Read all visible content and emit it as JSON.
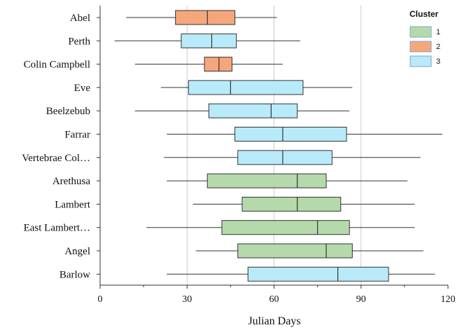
{
  "chart_data": {
    "type": "boxplot",
    "orientation": "horizontal",
    "xlabel": "Julian Days",
    "ylabel": "",
    "title": "",
    "xlim": [
      0,
      120
    ],
    "xticks": [
      0,
      30,
      60,
      90,
      120
    ],
    "grid": {
      "vertical": [
        30,
        60,
        90
      ]
    },
    "legend": {
      "title": "Cluster",
      "placement": "top-right",
      "entries": [
        {
          "label": "1",
          "color": "#B5D9AB"
        },
        {
          "label": "2",
          "color": "#F5A77C"
        },
        {
          "label": "3",
          "color": "#B8EAFA"
        }
      ]
    },
    "categories": [
      {
        "label": "Abel",
        "cluster": "2",
        "whisker_low": 9,
        "q1": 26,
        "median": 37,
        "q3": 46.5,
        "whisker_high": 61
      },
      {
        "label": "Perth",
        "cluster": "3",
        "whisker_low": 5,
        "q1": 28,
        "median": 38.5,
        "q3": 47,
        "whisker_high": 69
      },
      {
        "label": "Colin Campbell",
        "cluster": "2",
        "whisker_low": 12,
        "q1": 36,
        "median": 41,
        "q3": 45.5,
        "whisker_high": 63
      },
      {
        "label": "Eve",
        "cluster": "3",
        "whisker_low": 21,
        "q1": 30.5,
        "median": 45,
        "q3": 70,
        "whisker_high": 87
      },
      {
        "label": "Beelzebub",
        "cluster": "3",
        "whisker_low": 12,
        "q1": 37.5,
        "median": 59,
        "q3": 68,
        "whisker_high": 86
      },
      {
        "label": "Farrar",
        "cluster": "3",
        "whisker_low": 23,
        "q1": 46.5,
        "median": 63,
        "q3": 85,
        "whisker_high": 118
      },
      {
        "label": "Vertebrae Col…",
        "cluster": "3",
        "whisker_low": 22,
        "q1": 47.5,
        "median": 63,
        "q3": 80,
        "whisker_high": 110.5
      },
      {
        "label": "Arethusa",
        "cluster": "1",
        "whisker_low": 23,
        "q1": 37,
        "median": 68,
        "q3": 78,
        "whisker_high": 106
      },
      {
        "label": "Lambert",
        "cluster": "1",
        "whisker_low": 32,
        "q1": 49,
        "median": 68,
        "q3": 83,
        "whisker_high": 108.5
      },
      {
        "label": "East Lambert…",
        "cluster": "1",
        "whisker_low": 16,
        "q1": 42,
        "median": 75,
        "q3": 86,
        "whisker_high": 108.5
      },
      {
        "label": "Angel",
        "cluster": "1",
        "whisker_low": 33,
        "q1": 47.5,
        "median": 78,
        "q3": 87,
        "whisker_high": 111.5
      },
      {
        "label": "Barlow",
        "cluster": "3",
        "whisker_low": 23,
        "q1": 51,
        "median": 82,
        "q3": 99.5,
        "whisker_high": 115.5
      }
    ]
  }
}
